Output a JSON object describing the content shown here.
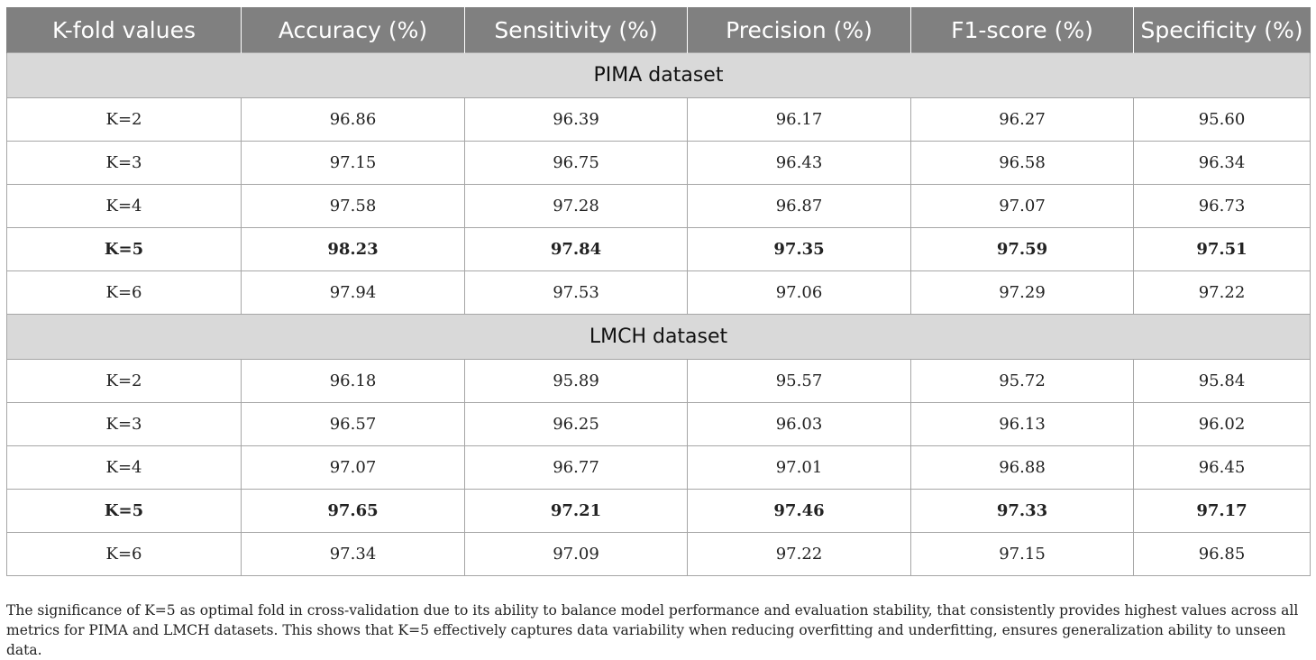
{
  "table": {
    "headers": [
      "K-fold values",
      "Accuracy (%)",
      "Sensitivity (%)",
      "Precision (%)",
      "F1-score (%)",
      "Specificity (%)"
    ],
    "sections": [
      {
        "title": "PIMA dataset",
        "rows": [
          {
            "k": "K=2",
            "values": [
              "96.86",
              "96.39",
              "96.17",
              "96.27",
              "95.60"
            ],
            "bold": false
          },
          {
            "k": "K=3",
            "values": [
              "97.15",
              "96.75",
              "96.43",
              "96.58",
              "96.34"
            ],
            "bold": false
          },
          {
            "k": "K=4",
            "values": [
              "97.58",
              "97.28",
              "96.87",
              "97.07",
              "96.73"
            ],
            "bold": false
          },
          {
            "k": "K=5",
            "values": [
              "98.23",
              "97.84",
              "97.35",
              "97.59",
              "97.51"
            ],
            "bold": true
          },
          {
            "k": "K=6",
            "values": [
              "97.94",
              "97.53",
              "97.06",
              "97.29",
              "97.22"
            ],
            "bold": false
          }
        ]
      },
      {
        "title": "LMCH dataset",
        "rows": [
          {
            "k": "K=2",
            "values": [
              "96.18",
              "95.89",
              "95.57",
              "95.72",
              "95.84"
            ],
            "bold": false
          },
          {
            "k": "K=3",
            "values": [
              "96.57",
              "96.25",
              "96.03",
              "96.13",
              "96.02"
            ],
            "bold": false
          },
          {
            "k": "K=4",
            "values": [
              "97.07",
              "96.77",
              "97.01",
              "96.88",
              "96.45"
            ],
            "bold": false
          },
          {
            "k": "K=5",
            "values": [
              "97.65",
              "97.21",
              "97.46",
              "97.33",
              "97.17"
            ],
            "bold": true
          },
          {
            "k": "K=6",
            "values": [
              "97.34",
              "97.09",
              "97.22",
              "97.15",
              "96.85"
            ],
            "bold": false
          }
        ]
      }
    ]
  },
  "note": "The significance of K=5 as optimal fold in cross-validation due to its ability to balance model performance and evaluation stability, that consistently provides highest values across all metrics for PIMA and LMCH datasets. This shows that K=5 effectively captures data variability when reducing overfitting and underfitting, ensures generalization ability to unseen data.",
  "colors": {
    "header_bg": "#808080",
    "section_bg": "#d9d9d9",
    "border": "#a6a6a6"
  }
}
